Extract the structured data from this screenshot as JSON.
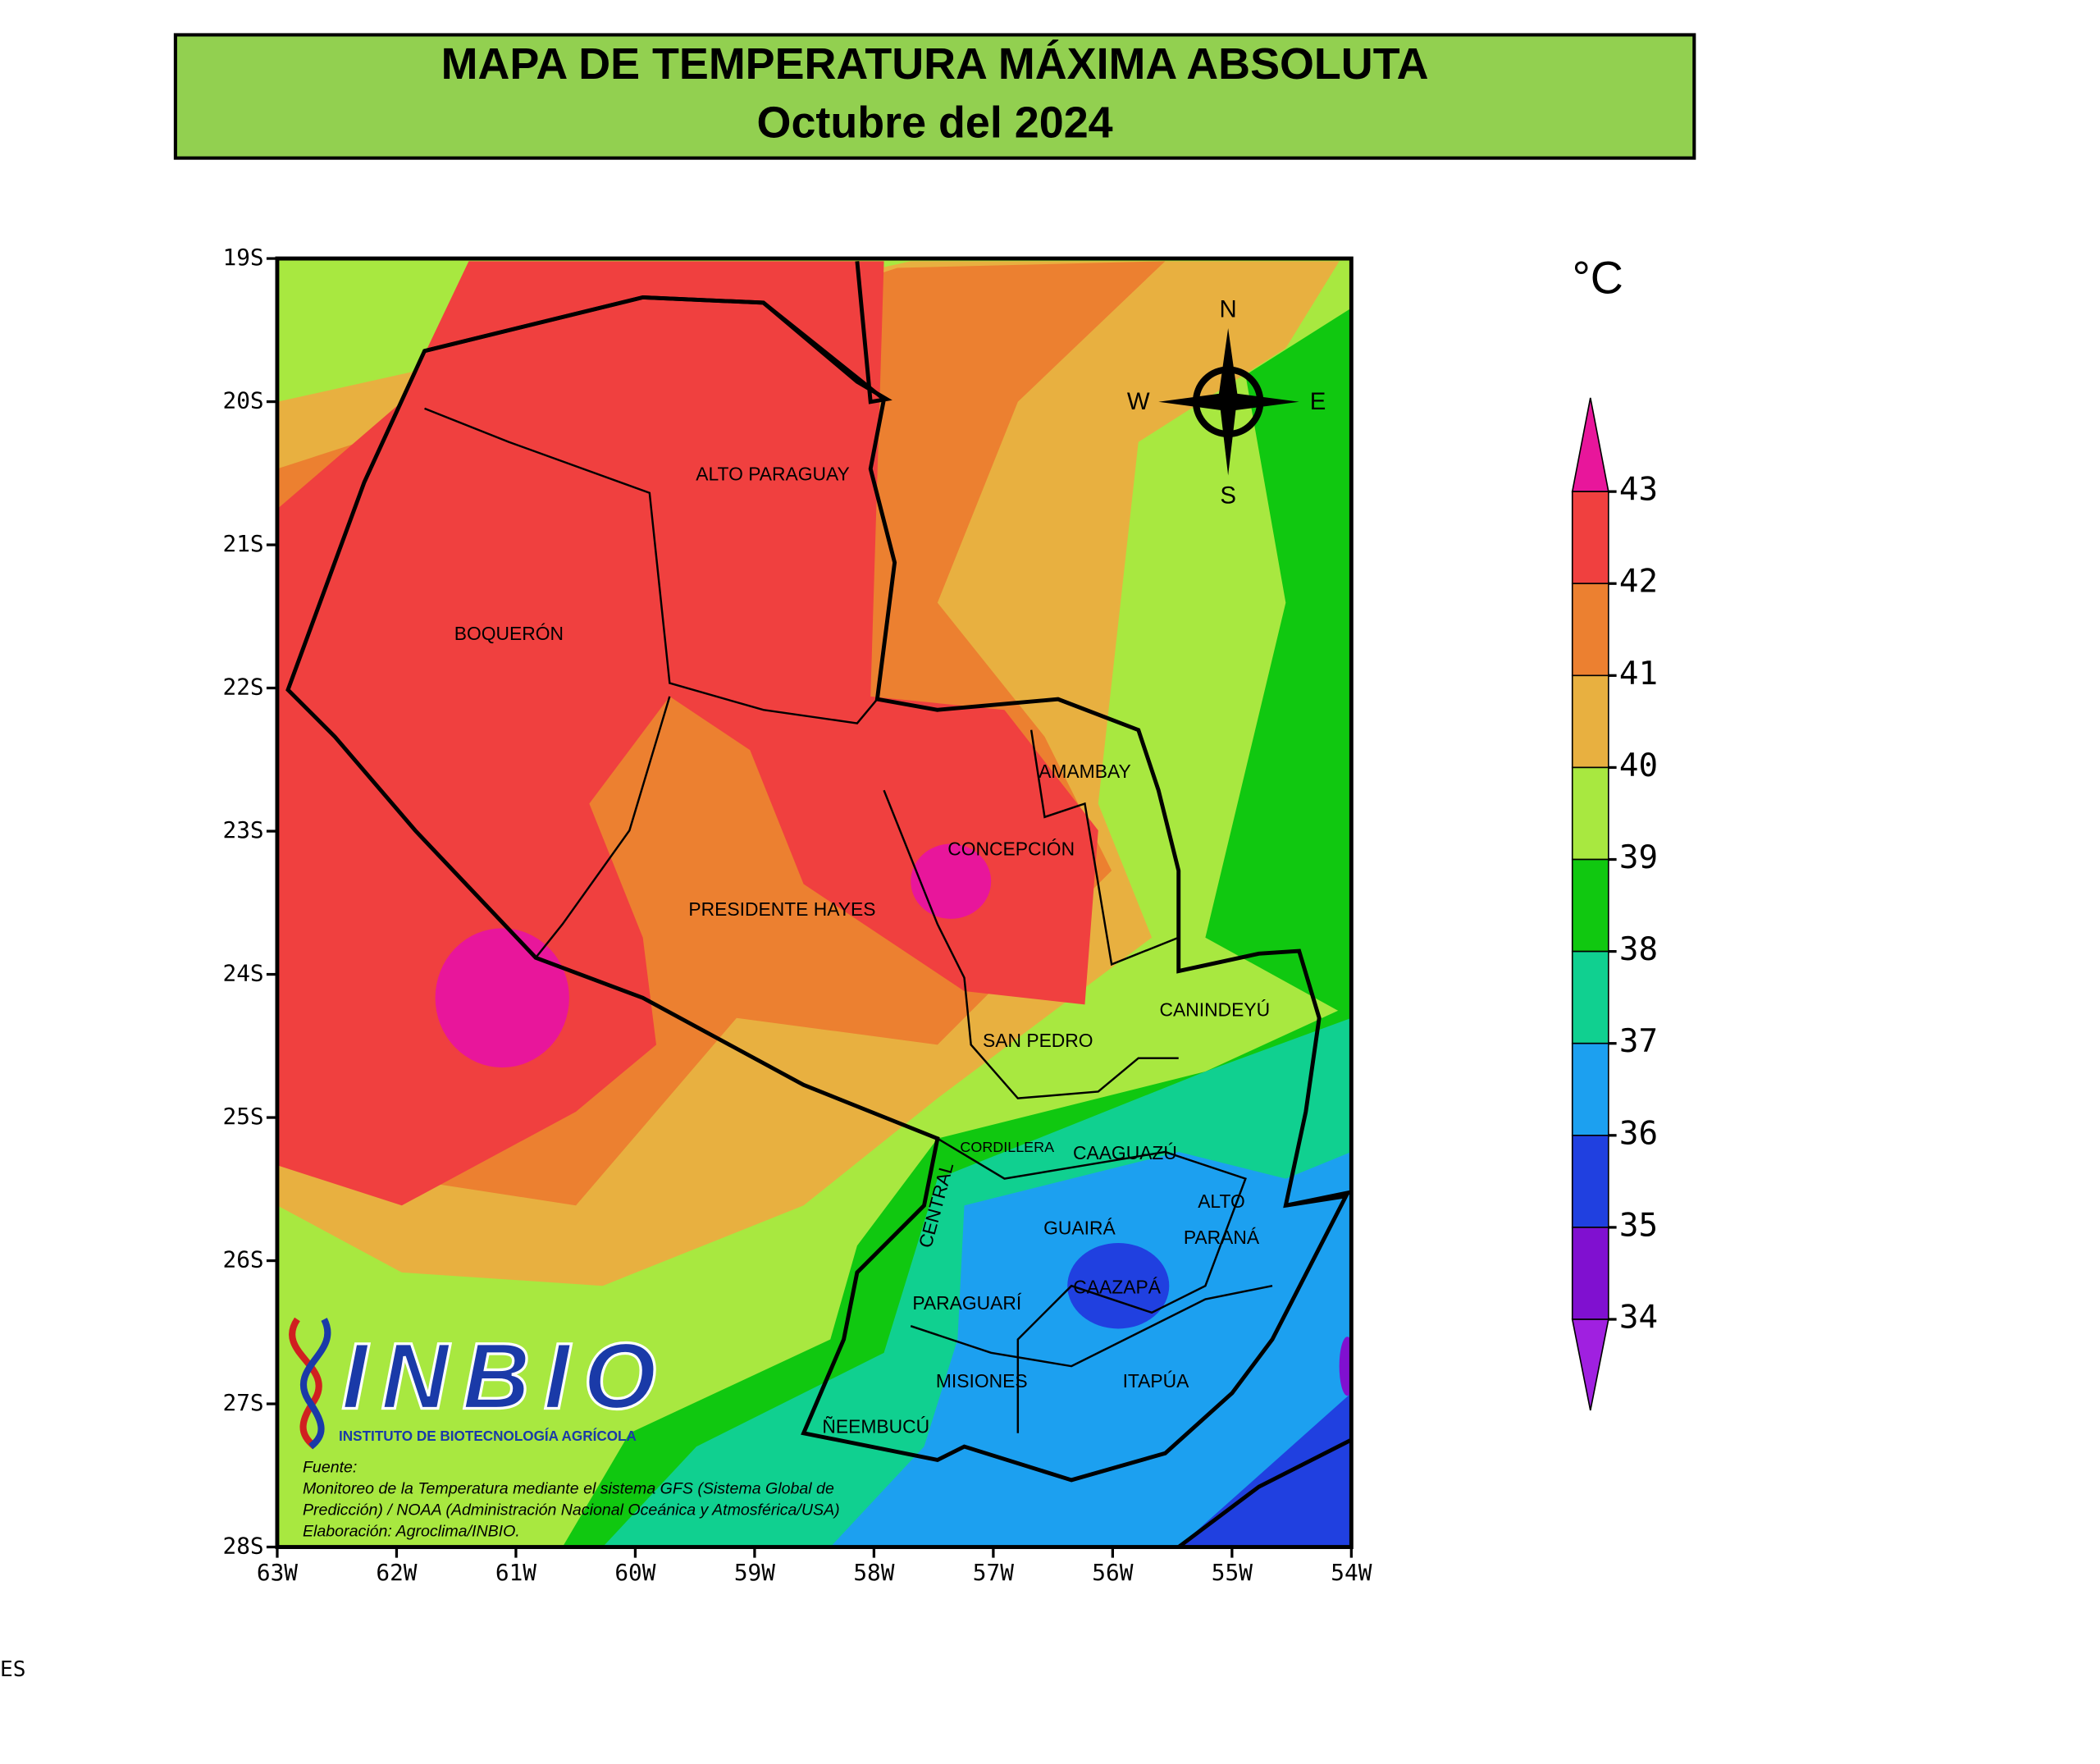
{
  "header": {
    "title": "MAPA DE TEMPERATURA MÁXIMA ABSOLUTA",
    "subtitle": "Octubre del 2024"
  },
  "map": {
    "lat_labels": [
      "19S",
      "20S",
      "21S",
      "22S",
      "23S",
      "24S",
      "25S",
      "26S",
      "27S",
      "28S"
    ],
    "lon_labels": [
      "63W",
      "62W",
      "61W",
      "60W",
      "59W",
      "58W",
      "57W",
      "56W",
      "55W",
      "54W"
    ],
    "regions": [
      [
        "ALTO PARAGUAY"
      ],
      [
        "BOQUERÓN"
      ],
      [
        "AMAMBAY"
      ],
      [
        "CONCEPCIÓN"
      ],
      [
        "PRESIDENTE HAYES"
      ],
      [
        "CANINDEYÚ"
      ],
      [
        "SAN PEDRO"
      ],
      [
        "CORDILLERA"
      ],
      [
        "CAAGUAZÚ"
      ],
      [
        "CENTRAL"
      ],
      [
        "ALTO",
        "PARANÁ"
      ],
      [
        "GUAIRÁ"
      ],
      [
        "CAAZAPÁ"
      ],
      [
        "PARAGUARÍ"
      ],
      [
        "MISIONES"
      ],
      [
        "ITAPÚA"
      ],
      [
        "ÑEEMBUCÚ"
      ]
    ],
    "compass": {
      "north": "N",
      "east": "E",
      "south": "S",
      "west": "W"
    }
  },
  "legend": {
    "unit": "°C",
    "ticks": [
      43,
      42,
      41,
      40,
      39,
      38,
      37,
      36,
      35,
      34
    ],
    "colors": [
      "#e8169b",
      "#f0403f",
      "#ec8030",
      "#e8b040",
      "#a8e840",
      "#10c810",
      "#10d090",
      "#1ca0f0",
      "#2040e0",
      "#8010d0",
      "#a020e0"
    ]
  },
  "logo": {
    "name": "INBIO",
    "subtitle": "INSTITUTO DE BIOTECNOLOGÍA AGRÍCOLA"
  },
  "source": {
    "lines": [
      "Fuente:",
      "Monitoreo de la Temperatura mediante el sistema GFS (Sistema Global de",
      "Predicción) / NOAA (Administración Nacional Oceánica y Atmosférica/USA)",
      "Elaboración: Agroclima/INBIO."
    ]
  },
  "footer_fragment": "ES"
}
